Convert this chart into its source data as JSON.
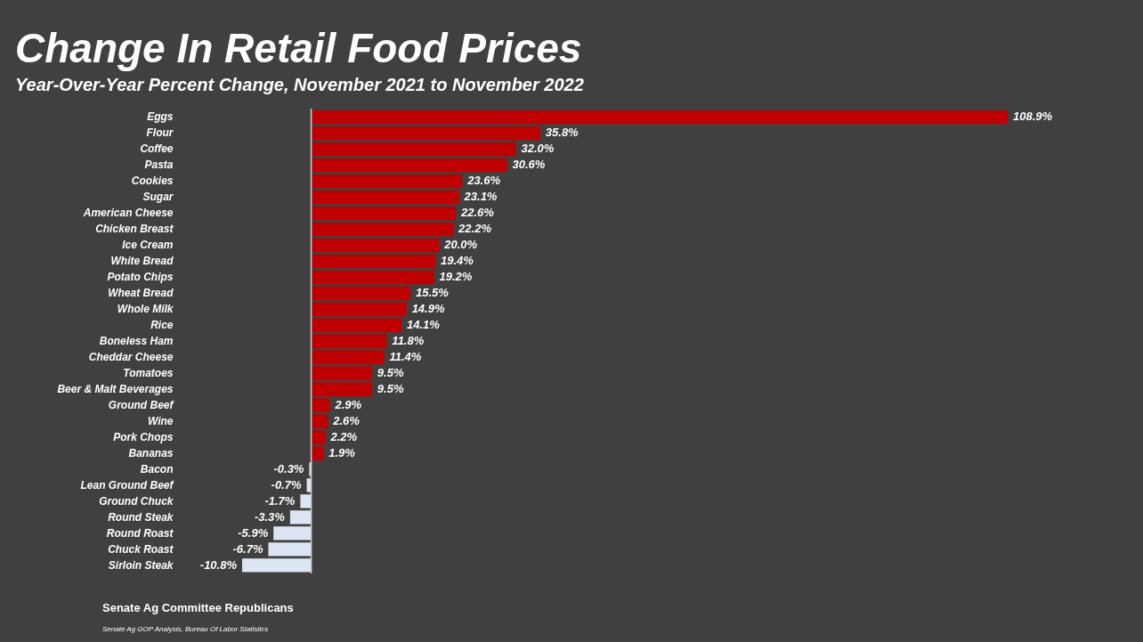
{
  "chart_data": {
    "type": "bar",
    "orientation": "horizontal",
    "title": "Change In Retail Food Prices",
    "subtitle": "Year-Over-Year Percent Change, November 2021 to November 2022",
    "categories": [
      "Eggs",
      "Flour",
      "Coffee",
      "Pasta",
      "Cookies",
      "Sugar",
      "American Cheese",
      "Chicken Breast",
      "Ice Cream",
      "White Bread",
      "Potato Chips",
      "Wheat Bread",
      "Whole Milk",
      "Rice",
      "Boneless Ham",
      "Cheddar Cheese",
      "Tomatoes",
      "Beer & Malt Beverages",
      "Ground Beef",
      "Wine",
      "Pork Chops",
      "Bananas",
      "Bacon",
      "Lean Ground Beef",
      "Ground Chuck",
      "Round Steak",
      "Round Roast",
      "Chuck Roast",
      "Sirloin Steak"
    ],
    "values": [
      108.9,
      35.8,
      32.0,
      30.6,
      23.6,
      23.1,
      22.6,
      22.2,
      20.0,
      19.4,
      19.2,
      15.5,
      14.9,
      14.1,
      11.8,
      11.4,
      9.5,
      9.5,
      2.9,
      2.6,
      2.2,
      1.9,
      -0.3,
      -0.7,
      -1.7,
      -3.3,
      -5.9,
      -6.7,
      -10.8
    ],
    "value_labels": [
      "108.9%",
      "35.8%",
      "32.0%",
      "30.6%",
      "23.6%",
      "23.1%",
      "22.6%",
      "22.2%",
      "20.0%",
      "19.4%",
      "19.2%",
      "15.5%",
      "14.9%",
      "14.1%",
      "11.8%",
      "11.4%",
      "9.5%",
      "9.5%",
      "2.9%",
      "2.6%",
      "2.2%",
      "1.9%",
      "-0.3%",
      "-0.7%",
      "-1.7%",
      "-3.3%",
      "-5.9%",
      "-6.7%",
      "-10.8%"
    ],
    "colors": [
      "#c00000",
      "#c00000",
      "#c00000",
      "#c00000",
      "#c00000",
      "#c00000",
      "#c00000",
      "#c00000",
      "#c00000",
      "#c00000",
      "#c00000",
      "#c00000",
      "#c00000",
      "#c00000",
      "#c00000",
      "#c00000",
      "#c00000",
      "#c00000",
      "#c00000",
      "#c00000",
      "#c00000",
      "#c00000",
      "#dce6f2",
      "#dce6f2",
      "#dce6f2",
      "#dce6f2",
      "#dce6f2",
      "#dce6f2",
      "#dce6f2"
    ],
    "annotations": [
      "Senate Ag Committee Republicans",
      "Senate Ag GOP Analysis, Bureau Of Labor Statistics"
    ],
    "grid": false
  }
}
